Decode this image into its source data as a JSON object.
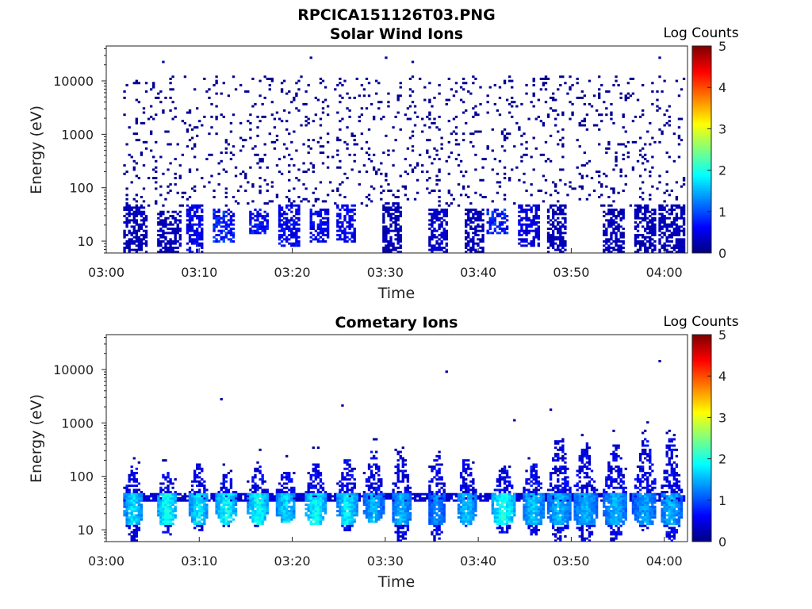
{
  "figure_title": "RPCICA151126T03.PNG",
  "colors": {
    "colormap": [
      "#00007f",
      "#0000ff",
      "#007fff",
      "#00ffff",
      "#7fff7f",
      "#ffff00",
      "#ff7f00",
      "#ff0000",
      "#7f0000"
    ],
    "axes": "#222222",
    "background": "#ffffff"
  },
  "chart_data": [
    {
      "type": "heatmap",
      "title": "Solar Wind Ions",
      "xlabel": "Time",
      "ylabel": "Energy (eV)",
      "x_ticks": [
        "03:00",
        "03:10",
        "03:20",
        "03:30",
        "03:40",
        "03:50",
        "04:00"
      ],
      "x_tick_minutes": [
        0,
        10,
        20,
        30,
        40,
        50,
        60
      ],
      "xlim_minutes": [
        0,
        62.5
      ],
      "y_scale": "log",
      "y_ticks": [
        "10",
        "100",
        "1000",
        "10000"
      ],
      "y_tick_values": [
        10,
        100,
        1000,
        10000
      ],
      "ylim": [
        6,
        45000
      ],
      "colorbar": {
        "title": "Log Counts",
        "range": [
          0,
          5
        ],
        "ticks": [
          "0",
          "1",
          "2",
          "3",
          "4",
          "5"
        ]
      },
      "data_start_minutes": 1.8,
      "bursts_low_energy": [
        {
          "start_min": 1.8,
          "end_min": 4.2,
          "energy_range": [
            6,
            45
          ],
          "log_counts": 0.3
        },
        {
          "start_min": 5.6,
          "end_min": 8.0,
          "energy_range": [
            6,
            35
          ],
          "log_counts": 0.3
        },
        {
          "start_min": 8.6,
          "end_min": 10.4,
          "energy_range": [
            6,
            45
          ],
          "log_counts": 0.6
        },
        {
          "start_min": 11.6,
          "end_min": 13.6,
          "energy_range": [
            10,
            40
          ],
          "log_counts": 0.8
        },
        {
          "start_min": 15.4,
          "end_min": 17.2,
          "energy_range": [
            14,
            40
          ],
          "log_counts": 0.7
        },
        {
          "start_min": 18.6,
          "end_min": 20.6,
          "energy_range": [
            8,
            45
          ],
          "log_counts": 0.6
        },
        {
          "start_min": 22.0,
          "end_min": 23.8,
          "energy_range": [
            10,
            40
          ],
          "log_counts": 0.6
        },
        {
          "start_min": 24.8,
          "end_min": 26.8,
          "energy_range": [
            10,
            45
          ],
          "log_counts": 0.6
        },
        {
          "start_min": 29.8,
          "end_min": 31.6,
          "energy_range": [
            6,
            50
          ],
          "log_counts": 0.3
        },
        {
          "start_min": 34.8,
          "end_min": 36.6,
          "energy_range": [
            6,
            40
          ],
          "log_counts": 0.4
        },
        {
          "start_min": 38.6,
          "end_min": 40.6,
          "energy_range": [
            6,
            40
          ],
          "log_counts": 0.3
        },
        {
          "start_min": 41.0,
          "end_min": 43.0,
          "energy_range": [
            14,
            40
          ],
          "log_counts": 0.8
        },
        {
          "start_min": 44.4,
          "end_min": 46.4,
          "energy_range": [
            8,
            45
          ],
          "log_counts": 0.5
        },
        {
          "start_min": 47.4,
          "end_min": 49.4,
          "energy_range": [
            6,
            45
          ],
          "log_counts": 0.3
        },
        {
          "start_min": 53.6,
          "end_min": 55.6,
          "energy_range": [
            6,
            40
          ],
          "log_counts": 0.3
        },
        {
          "start_min": 57.0,
          "end_min": 59.0,
          "energy_range": [
            6,
            45
          ],
          "log_counts": 0.3
        },
        {
          "start_min": 59.6,
          "end_min": 62.0,
          "energy_range": [
            6,
            45
          ],
          "log_counts": 0.3
        }
      ],
      "background_speckle": {
        "energy_range": [
          45,
          12000
        ],
        "log_counts": 0.1
      },
      "isolated_points": [
        {
          "minute": 6.2,
          "energy": 22000
        },
        {
          "minute": 22.0,
          "energy": 28000
        },
        {
          "minute": 30.0,
          "energy": 27000
        },
        {
          "minute": 33.0,
          "energy": 22000
        },
        {
          "minute": 59.6,
          "energy": 28000
        }
      ]
    },
    {
      "type": "heatmap",
      "title": "Cometary Ions",
      "xlabel": "Time",
      "ylabel": "Energy (eV)",
      "x_ticks": [
        "03:00",
        "03:10",
        "03:20",
        "03:30",
        "03:40",
        "03:50",
        "04:00"
      ],
      "x_tick_minutes": [
        0,
        10,
        20,
        30,
        40,
        50,
        60
      ],
      "xlim_minutes": [
        0,
        62.5
      ],
      "y_scale": "log",
      "y_ticks": [
        "10",
        "100",
        "1000",
        "10000"
      ],
      "y_tick_values": [
        10,
        100,
        1000,
        10000
      ],
      "ylim": [
        6,
        45000
      ],
      "colorbar": {
        "title": "Log Counts",
        "range": [
          0,
          5
        ],
        "ticks": [
          "0",
          "1",
          "2",
          "3",
          "4",
          "5"
        ]
      },
      "data_start_minutes": 1.8,
      "baseline_band": {
        "energy_range": [
          34,
          46
        ],
        "log_counts": 0.4
      },
      "bursts": [
        {
          "center_min": 2.8,
          "width_min": 2.0,
          "top_energy": 150,
          "low_energy": 6,
          "peak_log_counts": 1.8
        },
        {
          "center_min": 6.4,
          "width_min": 2.0,
          "top_energy": 120,
          "low_energy": 8,
          "peak_log_counts": 2.1
        },
        {
          "center_min": 9.8,
          "width_min": 2.0,
          "top_energy": 170,
          "low_energy": 10,
          "peak_log_counts": 1.9
        },
        {
          "center_min": 12.8,
          "width_min": 2.2,
          "top_energy": 110,
          "low_energy": 12,
          "peak_log_counts": 2.0
        },
        {
          "center_min": 16.2,
          "width_min": 2.2,
          "top_energy": 150,
          "low_energy": 12,
          "peak_log_counts": 2.0
        },
        {
          "center_min": 19.2,
          "width_min": 2.2,
          "top_energy": 130,
          "low_energy": 14,
          "peak_log_counts": 1.8
        },
        {
          "center_min": 22.4,
          "width_min": 2.2,
          "top_energy": 160,
          "low_energy": 12,
          "peak_log_counts": 2.0
        },
        {
          "center_min": 25.8,
          "width_min": 2.2,
          "top_energy": 200,
          "low_energy": 10,
          "peak_log_counts": 1.9
        },
        {
          "center_min": 28.6,
          "width_min": 2.2,
          "top_energy": 280,
          "low_energy": 14,
          "peak_log_counts": 1.6
        },
        {
          "center_min": 31.6,
          "width_min": 2.2,
          "top_energy": 300,
          "low_energy": 6,
          "peak_log_counts": 1.6
        },
        {
          "center_min": 35.4,
          "width_min": 2.0,
          "top_energy": 250,
          "low_energy": 6,
          "peak_log_counts": 1.4
        },
        {
          "center_min": 38.6,
          "width_min": 2.2,
          "top_energy": 200,
          "low_energy": 12,
          "peak_log_counts": 1.7
        },
        {
          "center_min": 42.6,
          "width_min": 2.4,
          "top_energy": 150,
          "low_energy": 8,
          "peak_log_counts": 2.1
        },
        {
          "center_min": 45.8,
          "width_min": 2.4,
          "top_energy": 160,
          "low_energy": 8,
          "peak_log_counts": 1.7
        },
        {
          "center_min": 48.6,
          "width_min": 2.6,
          "top_energy": 500,
          "low_energy": 6,
          "peak_log_counts": 1.6
        },
        {
          "center_min": 51.4,
          "width_min": 2.6,
          "top_energy": 420,
          "low_energy": 6,
          "peak_log_counts": 1.6
        },
        {
          "center_min": 54.6,
          "width_min": 2.6,
          "top_energy": 380,
          "low_energy": 6,
          "peak_log_counts": 1.6
        },
        {
          "center_min": 57.8,
          "width_min": 2.6,
          "top_energy": 500,
          "low_energy": 10,
          "peak_log_counts": 1.5
        },
        {
          "center_min": 60.6,
          "width_min": 2.4,
          "top_energy": 500,
          "low_energy": 6,
          "peak_log_counts": 1.6
        }
      ],
      "isolated_points": [
        {
          "minute": 12.4,
          "energy": 2800
        },
        {
          "minute": 25.4,
          "energy": 2200
        },
        {
          "minute": 36.6,
          "energy": 9500
        },
        {
          "minute": 43.8,
          "energy": 1100
        },
        {
          "minute": 47.8,
          "energy": 1700
        },
        {
          "minute": 59.6,
          "energy": 15000
        }
      ]
    }
  ]
}
